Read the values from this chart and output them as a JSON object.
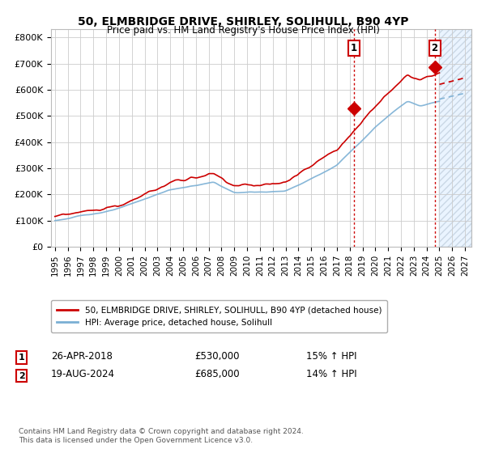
{
  "title": "50, ELMBRIDGE DRIVE, SHIRLEY, SOLIHULL, B90 4YP",
  "subtitle": "Price paid vs. HM Land Registry's House Price Index (HPI)",
  "ylim": [
    0,
    830000
  ],
  "yticks": [
    0,
    100000,
    200000,
    300000,
    400000,
    500000,
    600000,
    700000,
    800000
  ],
  "ytick_labels": [
    "£0",
    "£100K",
    "£200K",
    "£300K",
    "£400K",
    "£500K",
    "£600K",
    "£700K",
    "£800K"
  ],
  "xlim_start": 1994.7,
  "xlim_end": 2027.5,
  "xticks": [
    1995,
    1996,
    1997,
    1998,
    1999,
    2000,
    2001,
    2002,
    2003,
    2004,
    2005,
    2006,
    2007,
    2008,
    2009,
    2010,
    2011,
    2012,
    2013,
    2014,
    2015,
    2016,
    2017,
    2018,
    2019,
    2020,
    2021,
    2022,
    2023,
    2024,
    2025,
    2026,
    2027
  ],
  "hpi_color": "#7aafd4",
  "price_color": "#cc0000",
  "vline_color": "#cc0000",
  "purchase1_year": 2018.32,
  "purchase1_price": 530000,
  "purchase2_year": 2024.63,
  "purchase2_price": 685000,
  "legend_label1": "50, ELMBRIDGE DRIVE, SHIRLEY, SOLIHULL, B90 4YP (detached house)",
  "legend_label2": "HPI: Average price, detached house, Solihull",
  "annotation1_label": "1",
  "annotation2_label": "2",
  "annotation1_date": "26-APR-2018",
  "annotation1_price": "£530,000",
  "annotation1_hpi": "15% ↑ HPI",
  "annotation2_date": "19-AUG-2024",
  "annotation2_price": "£685,000",
  "annotation2_hpi": "14% ↑ HPI",
  "footnote": "Contains HM Land Registry data © Crown copyright and database right 2024.\nThis data is licensed under the Open Government Licence v3.0.",
  "future_shade_start": 2025.0,
  "background_color": "#ffffff",
  "grid_color": "#cccccc"
}
